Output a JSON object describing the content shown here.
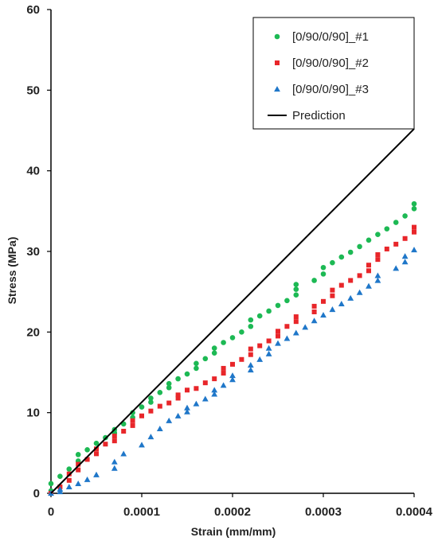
{
  "chart_data": {
    "type": "scatter",
    "xlabel": "Strain (mm/mm)",
    "ylabel": "Stress (MPa)",
    "xlim": [
      0,
      0.0004
    ],
    "ylim": [
      0,
      60
    ],
    "xticks": [
      "0",
      "0.0001",
      "0.0002",
      "0.0003",
      "0.0004"
    ],
    "xtick_values": [
      0,
      0.0001,
      0.0002,
      0.0003,
      0.0004
    ],
    "yticks": [
      "0",
      "10",
      "20",
      "30",
      "40",
      "50",
      "60"
    ],
    "ytick_values": [
      0,
      10,
      20,
      30,
      40,
      50,
      60
    ],
    "grid": false,
    "legend_position": "top-right",
    "series": [
      {
        "name": "[0/90/0/90]_#1",
        "marker": "circle",
        "color": "#1DB954",
        "points": [
          [
            0,
            0.3
          ],
          [
            0,
            1.2
          ],
          [
            1e-05,
            2.1
          ],
          [
            2e-05,
            3.0
          ],
          [
            3e-05,
            4.0
          ],
          [
            3e-05,
            4.8
          ],
          [
            4e-05,
            5.4
          ],
          [
            5e-05,
            6.2
          ],
          [
            6e-05,
            6.9
          ],
          [
            7e-05,
            7.5
          ],
          [
            7e-05,
            7.9
          ],
          [
            8e-05,
            8.6
          ],
          [
            9e-05,
            9.4
          ],
          [
            9e-05,
            10.0
          ],
          [
            0.0001,
            10.7
          ],
          [
            0.00011,
            11.3
          ],
          [
            0.00011,
            11.8
          ],
          [
            0.00012,
            12.5
          ],
          [
            0.00013,
            13.1
          ],
          [
            0.00013,
            13.6
          ],
          [
            0.00014,
            14.2
          ],
          [
            0.00015,
            14.8
          ],
          [
            0.00016,
            15.5
          ],
          [
            0.00016,
            16.1
          ],
          [
            0.00017,
            16.7
          ],
          [
            0.00018,
            17.4
          ],
          [
            0.00018,
            18.0
          ],
          [
            0.00019,
            18.7
          ],
          [
            0.0002,
            19.3
          ],
          [
            0.00021,
            20.0
          ],
          [
            0.00022,
            20.7
          ],
          [
            0.00022,
            21.5
          ],
          [
            0.00023,
            22.0
          ],
          [
            0.00024,
            22.6
          ],
          [
            0.00025,
            23.3
          ],
          [
            0.00026,
            23.9
          ],
          [
            0.00027,
            24.6
          ],
          [
            0.00027,
            25.3
          ],
          [
            0.00027,
            25.9
          ],
          [
            0.00029,
            26.4
          ],
          [
            0.0003,
            27.2
          ],
          [
            0.0003,
            28.0
          ],
          [
            0.00031,
            28.6
          ],
          [
            0.00032,
            29.3
          ],
          [
            0.00033,
            29.9
          ],
          [
            0.00034,
            30.6
          ],
          [
            0.00035,
            31.4
          ],
          [
            0.00036,
            32.1
          ],
          [
            0.00037,
            32.8
          ],
          [
            0.00038,
            33.6
          ],
          [
            0.00039,
            34.4
          ],
          [
            0.0004,
            35.3
          ],
          [
            0.0004,
            35.9
          ]
        ]
      },
      {
        "name": "[0/90/0/90]_#2",
        "marker": "square",
        "color": "#E8262A",
        "points": [
          [
            0,
            0.0
          ],
          [
            1e-05,
            0.8
          ],
          [
            2e-05,
            1.6
          ],
          [
            2e-05,
            2.4
          ],
          [
            3e-05,
            2.9
          ],
          [
            3e-05,
            3.6
          ],
          [
            4e-05,
            4.2
          ],
          [
            5e-05,
            4.9
          ],
          [
            5e-05,
            5.5
          ],
          [
            6e-05,
            6.1
          ],
          [
            7e-05,
            6.5
          ],
          [
            7e-05,
            7.1
          ],
          [
            8e-05,
            7.7
          ],
          [
            9e-05,
            8.4
          ],
          [
            9e-05,
            9.0
          ],
          [
            0.0001,
            9.6
          ],
          [
            0.00011,
            10.2
          ],
          [
            0.00012,
            10.8
          ],
          [
            0.00013,
            11.2
          ],
          [
            0.00014,
            11.8
          ],
          [
            0.00014,
            12.2
          ],
          [
            0.00015,
            12.8
          ],
          [
            0.00016,
            13.0
          ],
          [
            0.00017,
            13.7
          ],
          [
            0.00018,
            14.2
          ],
          [
            0.00019,
            14.9
          ],
          [
            0.00019,
            15.5
          ],
          [
            0.0002,
            16.0
          ],
          [
            0.00021,
            16.6
          ],
          [
            0.00022,
            17.2
          ],
          [
            0.00022,
            17.9
          ],
          [
            0.00023,
            18.3
          ],
          [
            0.00024,
            18.9
          ],
          [
            0.00025,
            19.5
          ],
          [
            0.00025,
            20.1
          ],
          [
            0.00026,
            20.7
          ],
          [
            0.00027,
            21.3
          ],
          [
            0.00027,
            21.9
          ],
          [
            0.00029,
            22.5
          ],
          [
            0.00029,
            23.2
          ],
          [
            0.0003,
            23.8
          ],
          [
            0.00031,
            24.5
          ],
          [
            0.00031,
            25.2
          ],
          [
            0.00032,
            25.8
          ],
          [
            0.00033,
            26.4
          ],
          [
            0.00034,
            27.0
          ],
          [
            0.00035,
            27.6
          ],
          [
            0.00035,
            28.3
          ],
          [
            0.00036,
            29.0
          ],
          [
            0.00036,
            29.6
          ],
          [
            0.00037,
            30.3
          ],
          [
            0.00038,
            30.9
          ],
          [
            0.00039,
            31.6
          ],
          [
            0.0004,
            32.4
          ],
          [
            0.0004,
            33.0
          ]
        ]
      },
      {
        "name": "[0/90/0/90]_#3",
        "marker": "triangle",
        "color": "#1F77C9",
        "points": [
          [
            0,
            0.0
          ],
          [
            1e-05,
            0.2
          ],
          [
            1e-05,
            0.5
          ],
          [
            2e-05,
            0.8
          ],
          [
            3e-05,
            1.2
          ],
          [
            4e-05,
            1.7
          ],
          [
            5e-05,
            2.3
          ],
          [
            7e-05,
            3.1
          ],
          [
            7e-05,
            3.9
          ],
          [
            8e-05,
            4.9
          ],
          [
            0.0001,
            6.0
          ],
          [
            0.00011,
            7.0
          ],
          [
            0.00012,
            8.0
          ],
          [
            0.00013,
            9.0
          ],
          [
            0.00014,
            9.6
          ],
          [
            0.00015,
            10.1
          ],
          [
            0.00015,
            10.6
          ],
          [
            0.00016,
            11.1
          ],
          [
            0.00017,
            11.7
          ],
          [
            0.00018,
            12.3
          ],
          [
            0.00018,
            12.8
          ],
          [
            0.00019,
            13.4
          ],
          [
            0.0002,
            14.1
          ],
          [
            0.0002,
            14.6
          ],
          [
            0.00022,
            15.3
          ],
          [
            0.00022,
            15.9
          ],
          [
            0.00023,
            16.6
          ],
          [
            0.00024,
            17.3
          ],
          [
            0.00024,
            18.0
          ],
          [
            0.00025,
            18.6
          ],
          [
            0.00026,
            19.2
          ],
          [
            0.00027,
            19.9
          ],
          [
            0.00028,
            20.6
          ],
          [
            0.00029,
            21.4
          ],
          [
            0.0003,
            22.1
          ],
          [
            0.00031,
            22.8
          ],
          [
            0.00032,
            23.5
          ],
          [
            0.00033,
            24.2
          ],
          [
            0.00034,
            24.9
          ],
          [
            0.00035,
            25.7
          ],
          [
            0.00036,
            26.4
          ],
          [
            0.00036,
            27.0
          ],
          [
            0.00038,
            27.9
          ],
          [
            0.00039,
            28.7
          ],
          [
            0.00039,
            29.4
          ],
          [
            0.0004,
            30.2
          ]
        ]
      },
      {
        "name": "Prediction",
        "marker": "line",
        "color": "#000000",
        "points": [
          [
            0,
            0
          ],
          [
            0.0004,
            45.2
          ]
        ]
      }
    ]
  }
}
